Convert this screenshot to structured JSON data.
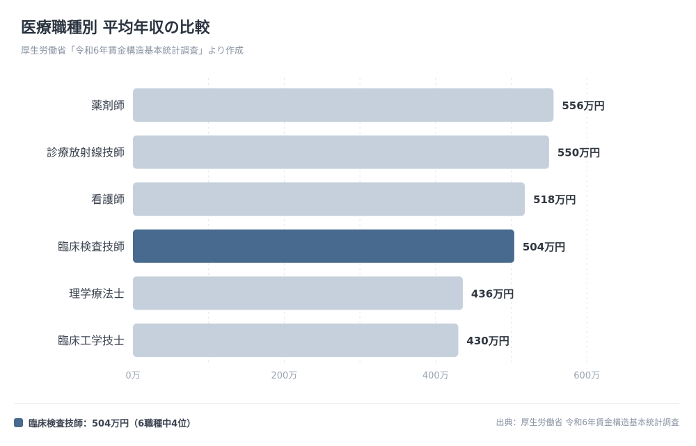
{
  "header": {
    "title": "医療職種別 平均年収の比較",
    "subtitle": "厚生労働省「令和6年賃金構造基本統計調査」より作成"
  },
  "colors": {
    "bar_default": "#c5d0dc",
    "bar_highlight": "#486a8f",
    "grid": "#e3e7ec",
    "tick_label": "#9aa4b2",
    "category_label": "#3b4350",
    "value_label": "#2f3640"
  },
  "chart_data": {
    "type": "bar",
    "orientation": "horizontal",
    "title": "医療職種別 平均年収の比較",
    "subtitle": "厚生労働省「令和6年賃金構造基本統計調査」より作成",
    "categories": [
      "薬剤師",
      "診療放射線技師",
      "看護師",
      "臨床検査技師",
      "理学療法士",
      "臨床工学技士"
    ],
    "values": [
      556,
      550,
      518,
      504,
      436,
      430
    ],
    "value_labels": [
      "556万円",
      "550万円",
      "518万円",
      "504万円",
      "436万円",
      "430万円"
    ],
    "highlight": "臨床検査技師",
    "xlim": [
      0,
      650
    ],
    "xticks": [
      0,
      200,
      400,
      600
    ],
    "xtick_labels": [
      "0万",
      "200万",
      "400万",
      "600万"
    ],
    "grid": true,
    "xlabel": "",
    "ylabel": ""
  },
  "footer": {
    "legend_text": "臨床検査技師：504万円（6職種中4位）",
    "source": "出典：厚生労働省 令和6年賃金構造基本統計調査"
  }
}
